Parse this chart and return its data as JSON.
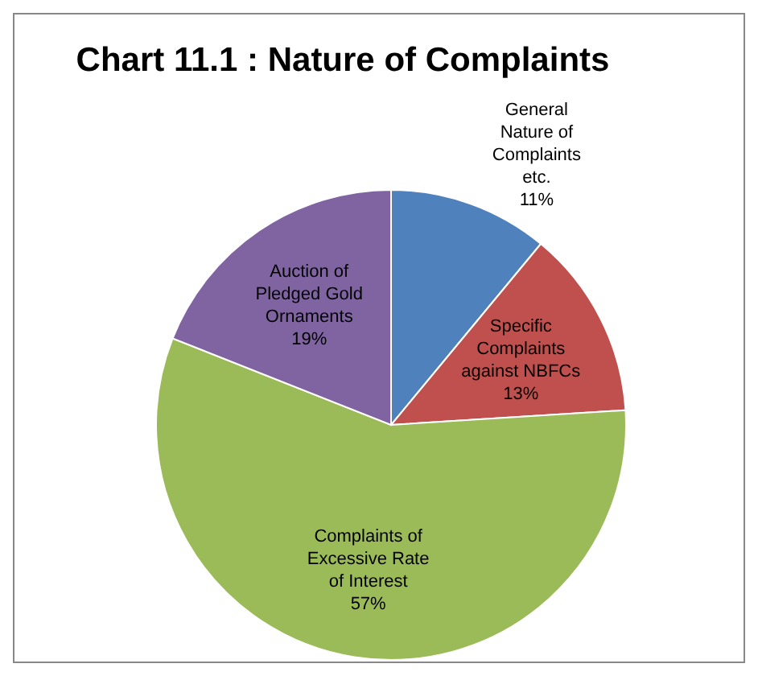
{
  "chart_data": {
    "type": "pie",
    "title": "Chart 11.1 : Nature of Complaints",
    "categories": [
      "General Nature of Complaints etc.",
      "Specific Complaints against NBFCs",
      "Complaints of Excessive Rate of Interest",
      "Auction of Pledged Gold Ornaments"
    ],
    "values": [
      11,
      13,
      57,
      19
    ],
    "value_labels": [
      "11%",
      "13%",
      "57%",
      "19%"
    ],
    "colors": [
      "#4f81bd",
      "#c0504d",
      "#9bbb59",
      "#8064a2"
    ]
  }
}
